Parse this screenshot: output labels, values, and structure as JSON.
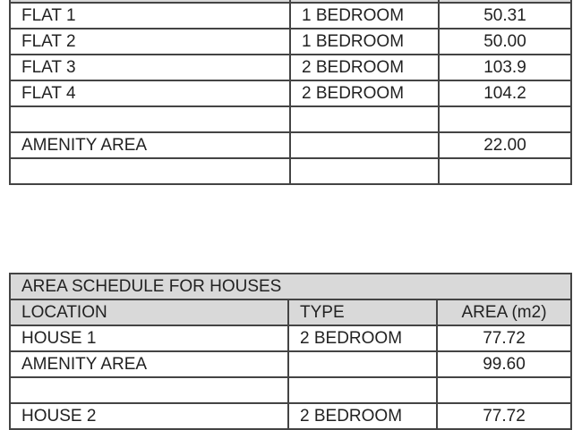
{
  "flats_table": {
    "rows": [
      {
        "location": "FLAT 1",
        "type": "1 BEDROOM",
        "area": "50.31"
      },
      {
        "location": "FLAT 2",
        "type": "1 BEDROOM",
        "area": "50.00"
      },
      {
        "location": "FLAT 3",
        "type": "2 BEDROOM",
        "area": "103.9"
      },
      {
        "location": "FLAT 4",
        "type": "2 BEDROOM",
        "area": "104.2"
      },
      {
        "location": "",
        "type": "",
        "area": ""
      },
      {
        "location": "AMENITY AREA",
        "type": "",
        "area": "22.00"
      },
      {
        "location": "",
        "type": "",
        "area": ""
      }
    ]
  },
  "houses_table": {
    "title": "AREA SCHEDULE FOR HOUSES",
    "headers": {
      "location": "LOCATION",
      "type": "TYPE",
      "area": "AREA (m2)"
    },
    "rows": [
      {
        "location": "HOUSE 1",
        "type": "2 BEDROOM",
        "area": "77.72"
      },
      {
        "location": "AMENITY AREA",
        "type": "",
        "area": "99.60"
      },
      {
        "location": "",
        "type": "",
        "area": ""
      },
      {
        "location": "HOUSE 2",
        "type": "2 BEDROOM",
        "area": "77.72"
      }
    ]
  }
}
